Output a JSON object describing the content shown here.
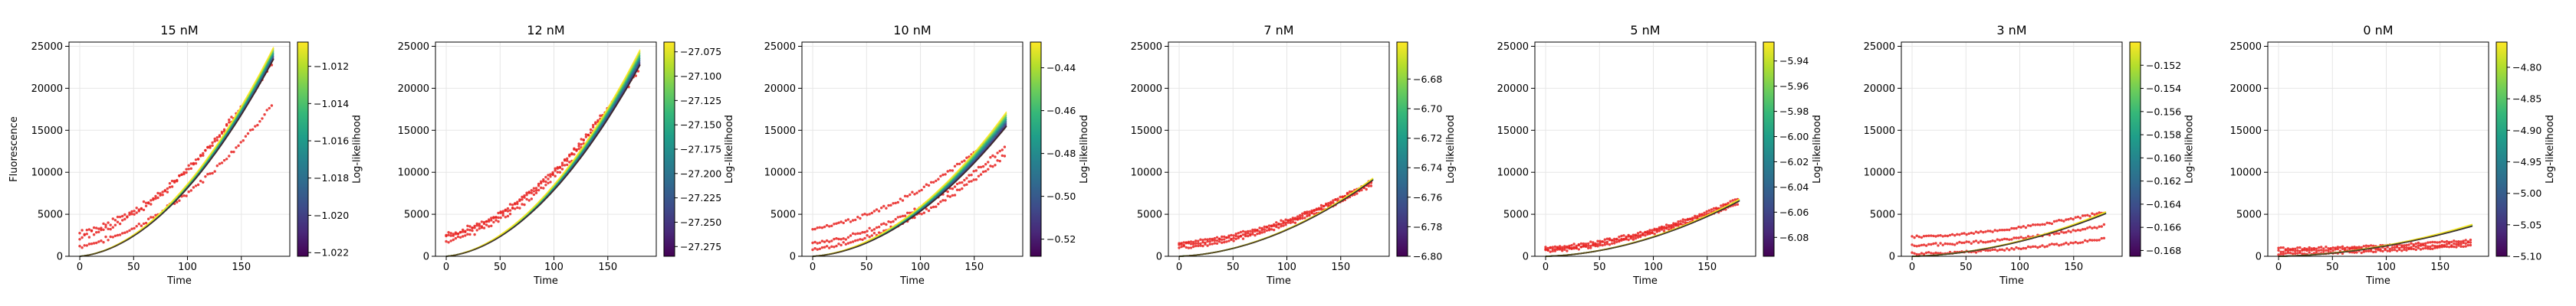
{
  "figure": {
    "colors": {
      "data_points": "#e8201d",
      "axes": "#000000",
      "grid": "#e6e6e6",
      "colormap": "viridis"
    }
  },
  "chart_data": [
    {
      "type": "line",
      "title": "15 nM",
      "xlabel": "Time",
      "ylabel": "Fluorescence",
      "xlim": [
        -10,
        195
      ],
      "ylim": [
        0,
        25500
      ],
      "xticks": [
        "0",
        "50",
        "100",
        "150"
      ],
      "yticks": [
        "0",
        "5000",
        "10000",
        "15000",
        "20000",
        "25000"
      ],
      "grid": true,
      "fit_end_values": [
        23500,
        24900
      ],
      "data_series": [
        {
          "start": 1200,
          "end": 18300
        },
        {
          "start": 2300,
          "end": 23600
        },
        {
          "start": 2800,
          "end": 23200
        }
      ],
      "colorbar": {
        "label": "Log-likelihood",
        "min": -1.0222,
        "max": -1.0107,
        "ticks": [
          "−1.022",
          "−1.020",
          "−1.018",
          "−1.016",
          "−1.014",
          "−1.012"
        ]
      }
    },
    {
      "type": "line",
      "title": "12 nM",
      "xlabel": "Time",
      "ylabel": "",
      "xlim": [
        -10,
        195
      ],
      "ylim": [
        0,
        25500
      ],
      "xticks": [
        "0",
        "50",
        "100",
        "150"
      ],
      "yticks": [
        "0",
        "5000",
        "10000",
        "15000",
        "20000",
        "25000"
      ],
      "grid": true,
      "fit_end_values": [
        22800,
        24600
      ],
      "data_series": [
        {
          "start": 1800,
          "end": 22500
        },
        {
          "start": 2300,
          "end": 23400
        },
        {
          "start": 2500,
          "end": 23000
        }
      ],
      "colorbar": {
        "label": "Log-likelihood",
        "min": -27.285,
        "max": -27.065,
        "ticks": [
          "−27.075",
          "−27.100",
          "−27.125",
          "−27.150",
          "−27.175",
          "−27.200",
          "−27.225",
          "−27.250",
          "−27.275"
        ]
      }
    },
    {
      "type": "line",
      "title": "10 nM",
      "xlabel": "Time",
      "ylabel": "",
      "xlim": [
        -10,
        195
      ],
      "ylim": [
        0,
        25500
      ],
      "xticks": [
        "0",
        "50",
        "100",
        "150"
      ],
      "yticks": [
        "0",
        "5000",
        "10000",
        "15000",
        "20000",
        "25000"
      ],
      "grid": true,
      "fit_end_values": [
        15500,
        17200
      ],
      "data_series": [
        {
          "start": 800,
          "end": 12200
        },
        {
          "start": 1500,
          "end": 13200
        },
        {
          "start": 3300,
          "end": 15800
        }
      ],
      "colorbar": {
        "label": "Log-likelihood",
        "min": -0.528,
        "max": -0.428,
        "ticks": [
          "−0.44",
          "−0.46",
          "−0.48",
          "−0.50",
          "−0.52"
        ]
      }
    },
    {
      "type": "line",
      "title": "7 nM",
      "xlabel": "Time",
      "ylabel": "",
      "xlim": [
        -10,
        195
      ],
      "ylim": [
        0,
        25500
      ],
      "xticks": [
        "0",
        "50",
        "100",
        "150"
      ],
      "yticks": [
        "0",
        "5000",
        "10000",
        "15000",
        "20000",
        "25000"
      ],
      "grid": true,
      "fit_end_values": [
        9100,
        9300
      ],
      "data_series": [
        {
          "start": 1000,
          "end": 8600
        },
        {
          "start": 1300,
          "end": 8900
        },
        {
          "start": 1600,
          "end": 9000
        }
      ],
      "colorbar": {
        "label": "Log-likelihood",
        "min": -6.8,
        "max": -6.655,
        "ticks": [
          "−6.68",
          "−6.70",
          "−6.72",
          "−6.74",
          "−6.76",
          "−6.78",
          "−6.80"
        ]
      }
    },
    {
      "type": "line",
      "title": "5 nM",
      "xlabel": "Time",
      "ylabel": "",
      "xlim": [
        -10,
        195
      ],
      "ylim": [
        0,
        25500
      ],
      "xticks": [
        "0",
        "50",
        "100",
        "150"
      ],
      "yticks": [
        "0",
        "5000",
        "10000",
        "15000",
        "20000",
        "25000"
      ],
      "grid": true,
      "fit_end_values": [
        6600,
        6800
      ],
      "data_series": [
        {
          "start": 600,
          "end": 6400
        },
        {
          "start": 800,
          "end": 6700
        },
        {
          "start": 1000,
          "end": 6900
        }
      ],
      "colorbar": {
        "label": "Log-likelihood",
        "min": -6.095,
        "max": -5.925,
        "ticks": [
          "−5.94",
          "−5.96",
          "−5.98",
          "−6.00",
          "−6.02",
          "−6.04",
          "−6.06",
          "−6.08"
        ]
      }
    },
    {
      "type": "line",
      "title": "3 nM",
      "xlabel": "Time",
      "ylabel": "",
      "xlim": [
        -10,
        195
      ],
      "ylim": [
        0,
        25500
      ],
      "xticks": [
        "0",
        "50",
        "100",
        "150"
      ],
      "yticks": [
        "0",
        "5000",
        "10000",
        "15000",
        "20000",
        "25000"
      ],
      "grid": true,
      "fit_end_values": [
        5100,
        5300
      ],
      "data_series": [
        {
          "start": 300,
          "end": 2100
        },
        {
          "start": 1300,
          "end": 3700
        },
        {
          "start": 2300,
          "end": 5300
        }
      ],
      "colorbar": {
        "label": "Log-likelihood",
        "min": -0.1685,
        "max": -0.15,
        "ticks": [
          "−0.152",
          "−0.154",
          "−0.156",
          "−0.158",
          "−0.160",
          "−0.162",
          "−0.164",
          "−0.166",
          "−0.168"
        ]
      }
    },
    {
      "type": "line",
      "title": "0 nM",
      "xlabel": "Time",
      "ylabel": "",
      "xlim": [
        -10,
        195
      ],
      "ylim": [
        0,
        25500
      ],
      "xticks": [
        "0",
        "50",
        "100",
        "150"
      ],
      "yticks": [
        "0",
        "5000",
        "10000",
        "15000",
        "20000",
        "25000"
      ],
      "grid": true,
      "fit_end_values": [
        3600,
        3800
      ],
      "data_series": [
        {
          "start": 300,
          "end": 1300
        },
        {
          "start": 600,
          "end": 1600
        },
        {
          "start": 900,
          "end": 1900
        }
      ],
      "colorbar": {
        "label": "Log-likelihood",
        "min": -5.1,
        "max": -4.76,
        "ticks": [
          "−4.80",
          "−4.85",
          "−4.90",
          "−4.95",
          "−5.00",
          "−5.05",
          "−5.10"
        ]
      }
    }
  ]
}
